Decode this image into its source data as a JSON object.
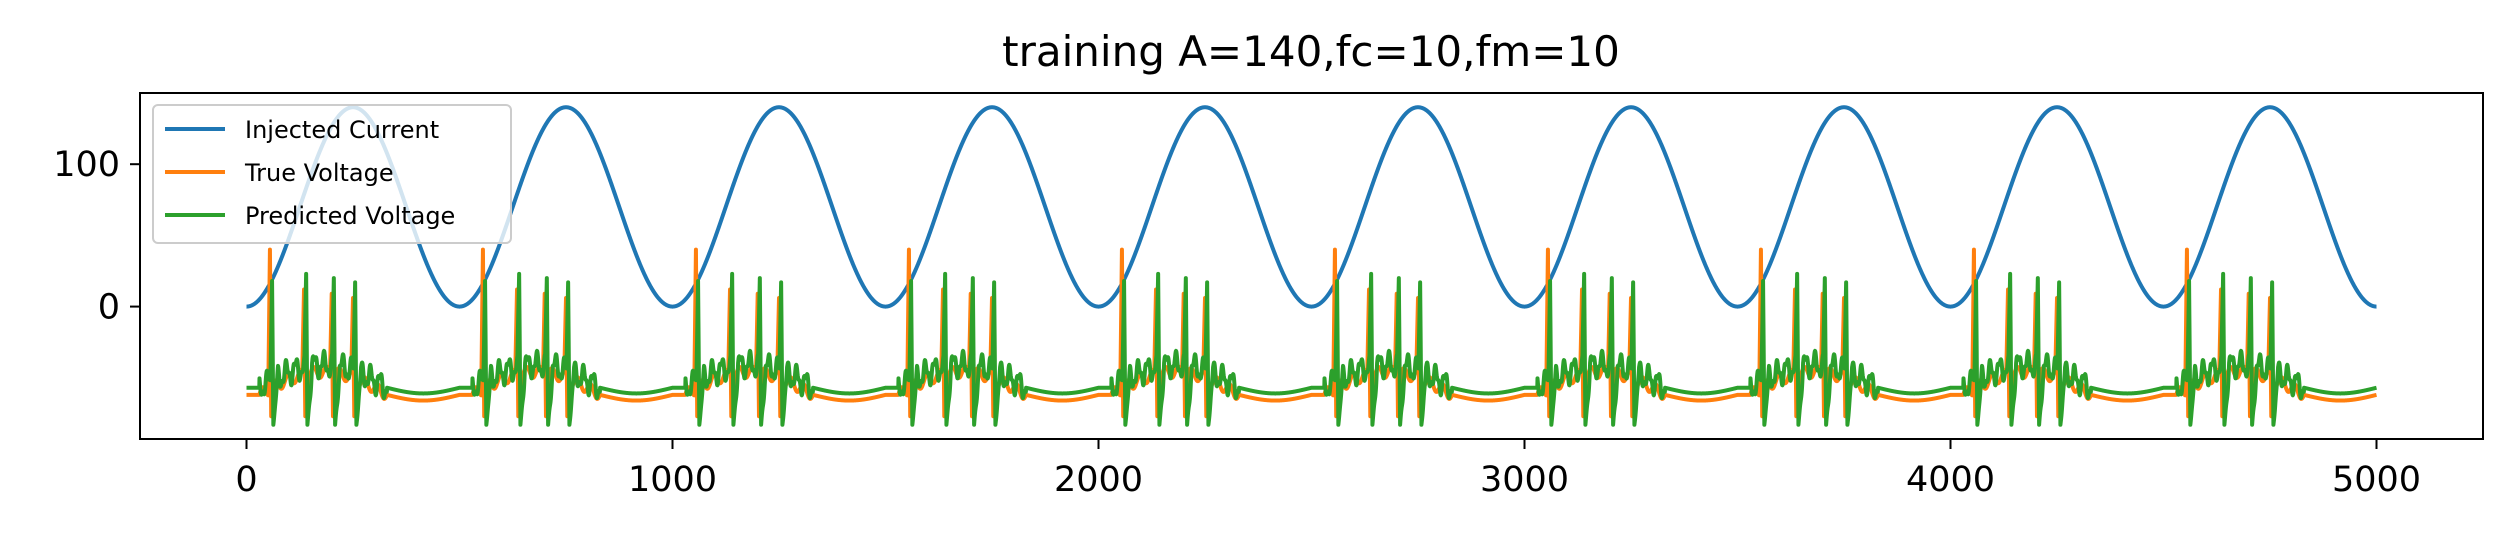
{
  "chart_data": {
    "type": "line",
    "title": "training A=140,fc=10,fm=10",
    "xlabel": "",
    "ylabel": "",
    "xlim": [
      -250,
      5250
    ],
    "ylim": [
      -93,
      150
    ],
    "xticks": [
      0,
      1000,
      2000,
      3000,
      4000,
      5000
    ],
    "xtick_labels": [
      "0",
      "1000",
      "2000",
      "3000",
      "4000",
      "5000"
    ],
    "yticks": [
      0,
      100
    ],
    "ytick_labels": [
      "0",
      "100"
    ],
    "grid": false,
    "legend_position": "top-left",
    "x_range": [
      0,
      5000
    ],
    "series": [
      {
        "name": "Injected Current",
        "color": "#1f77b4",
        "shape": "sine",
        "amplitude_peak": 140,
        "minimum": 0,
        "period": 500,
        "start_value": 0,
        "end_value": 0
      },
      {
        "name": "True Voltage",
        "color": "#ff7f0e",
        "resting_level": -62,
        "spike_peak": 40,
        "spike_trough": -77,
        "first_spike_times": [
          55,
          135,
          200,
          250
        ],
        "burst_period": 500
      },
      {
        "name": "Predicted Voltage",
        "color": "#2ca02c",
        "resting_level": -57,
        "spike_peak": 18,
        "spike_trough": -83,
        "first_spike_times": [
          60,
          140,
          205,
          255
        ],
        "burst_period": 500
      }
    ]
  }
}
